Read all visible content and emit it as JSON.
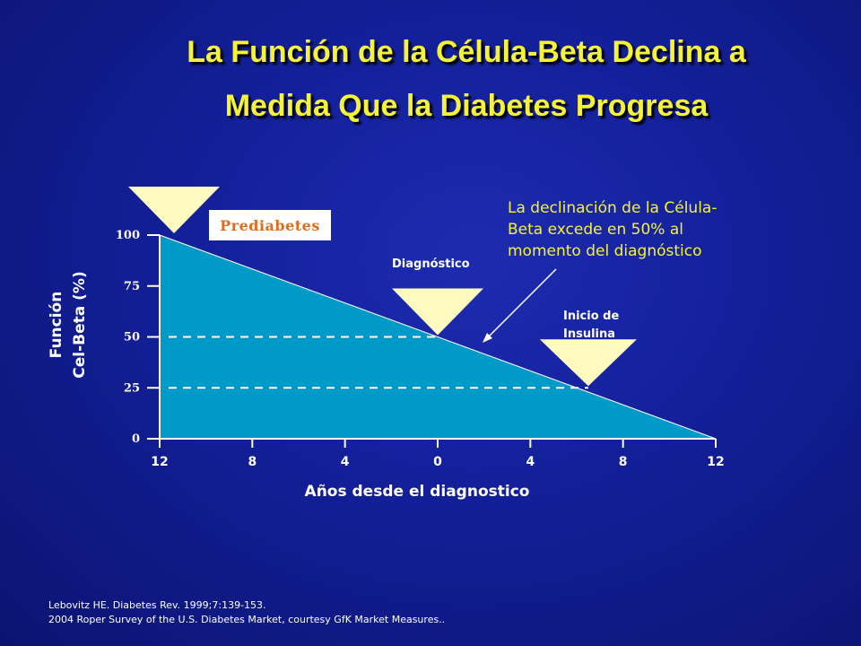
{
  "slide": {
    "title_line1": "La Función de la Célula-Beta Declina a",
    "title_line2": "Medida Que la Diabetes Progresa",
    "prediabetes_label": "Prediabetes",
    "diagnosis_label": "Diagnóstico",
    "insulin_label_line1": "Inicio de",
    "insulin_label_line2": "Insulina",
    "annotation_line1": "La declinación de la Célula-",
    "annotation_line2": "Beta excede en 50% al",
    "annotation_line3": "momento del diagnóstico",
    "reference_line1": "Lebovitz HE. Diabetes Rev. 1999;7:139-153.",
    "reference_line2": "2004 Roper Survey of the U.S. Diabetes Market, courtesy GfK Market Measures..",
    "colors": {
      "background": "#131f98",
      "title": "#f5f23a",
      "area_fill": "#009ac9",
      "marker_fill": "#fffbc0",
      "prediabetes_text": "#e36b1b"
    }
  },
  "chart_data": {
    "type": "area",
    "xlabel": "Años desde el diagnostico",
    "ylabel_line1": "Función",
    "ylabel_line2": "Cel-Beta (%)",
    "x": [
      -12,
      12
    ],
    "y": [
      100,
      0
    ],
    "xlim": [
      -12,
      12
    ],
    "ylim": [
      0,
      100
    ],
    "x_ticks": [
      -12,
      -8,
      -4,
      0,
      4,
      8,
      12
    ],
    "x_tick_labels": [
      "12",
      "8",
      "4",
      "0",
      "4",
      "8",
      "12"
    ],
    "y_ticks": [
      0,
      25,
      50,
      75,
      100
    ],
    "y_tick_labels": [
      "0",
      "25",
      "50",
      "75",
      "100"
    ],
    "reference_lines": [
      {
        "y": 50,
        "x_end": 0
      },
      {
        "y": 25,
        "x_end": 6.5
      }
    ],
    "markers": [
      {
        "name": "Prediabetes",
        "x": -12,
        "y": 100
      },
      {
        "name": "Diagnóstico",
        "x": 0,
        "y": 50
      },
      {
        "name": "Inicio de Insulina",
        "x": 6.5,
        "y": 25
      }
    ]
  }
}
